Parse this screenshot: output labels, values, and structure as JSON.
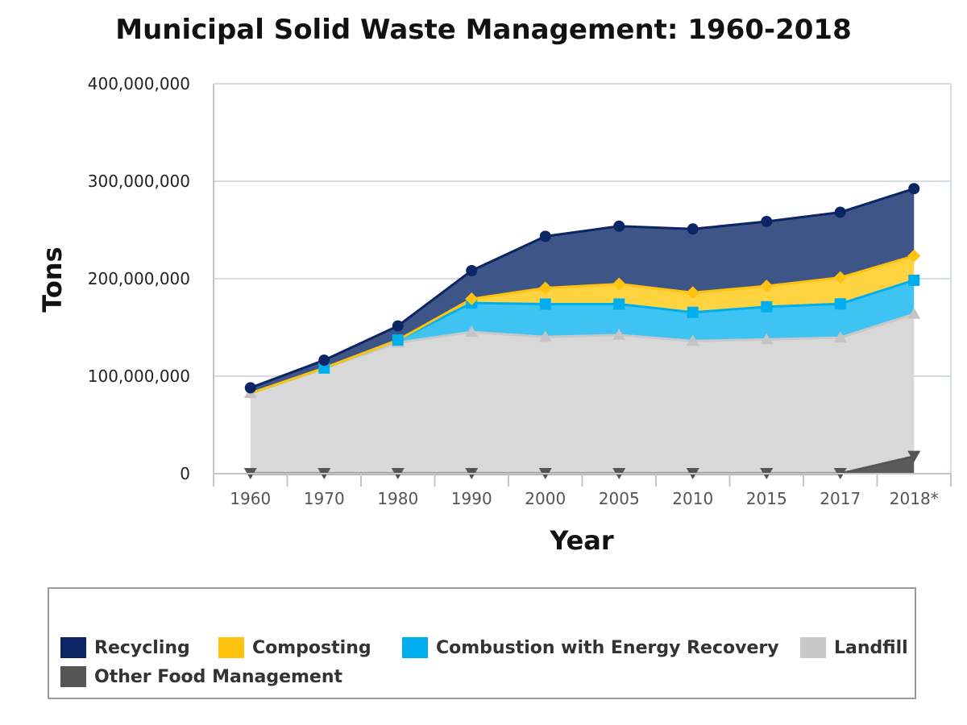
{
  "chart_data": {
    "type": "area",
    "stacked": true,
    "title": "Municipal Solid Waste Management: 1960-2018",
    "xlabel": "Year",
    "ylabel": "Tons",
    "ylim": [
      0,
      400000000
    ],
    "yticks": [
      0,
      100000000,
      200000000,
      300000000,
      400000000
    ],
    "ytick_labels": [
      "0",
      "100,000,000",
      "200,000,000",
      "300,000,000",
      "400,000,000"
    ],
    "categories": [
      "1960",
      "1970",
      "1980",
      "1990",
      "2000",
      "2005",
      "2010",
      "2015",
      "2017",
      "2018*"
    ],
    "grid": true,
    "legend_position": "bottom",
    "series": [
      {
        "name": "Other Food Management",
        "color": "#555555",
        "marker": "triangle-down",
        "values": [
          0,
          0,
          0,
          0,
          0,
          0,
          0,
          0,
          0,
          17700000
        ]
      },
      {
        "name": "Landfill",
        "color": "#c8c8c8",
        "marker": "triangle",
        "values": [
          82500000,
          108000000,
          134400000,
          145300000,
          140300000,
          142300000,
          136200000,
          137700000,
          139600000,
          146100000
        ]
      },
      {
        "name": "Combustion with Energy Recovery",
        "color": "#00aeef",
        "marker": "square",
        "values": [
          0,
          400000,
          2700000,
          29800000,
          33700000,
          31700000,
          29300000,
          33500000,
          34600000,
          34600000
        ]
      },
      {
        "name": "Composting",
        "color": "#ffc20e",
        "marker": "diamond",
        "values": [
          0,
          0,
          0,
          4200000,
          16500000,
          20600000,
          20200000,
          21300000,
          27000000,
          25000000
        ]
      },
      {
        "name": "Recycling",
        "color": "#0b2565",
        "marker": "circle",
        "values": [
          5600000,
          8000000,
          14500000,
          29000000,
          53000000,
          59300000,
          65300000,
          66200000,
          67000000,
          69000000
        ]
      }
    ]
  },
  "legend": {
    "items": [
      {
        "label": "Recycling",
        "color": "#0b2565"
      },
      {
        "label": "Composting",
        "color": "#ffc20e"
      },
      {
        "label": "Combustion with Energy Recovery",
        "color": "#00aeef"
      },
      {
        "label": "Landfill",
        "color": "#c8c8c8"
      },
      {
        "label": "Other Food Management",
        "color": "#555555"
      }
    ]
  }
}
